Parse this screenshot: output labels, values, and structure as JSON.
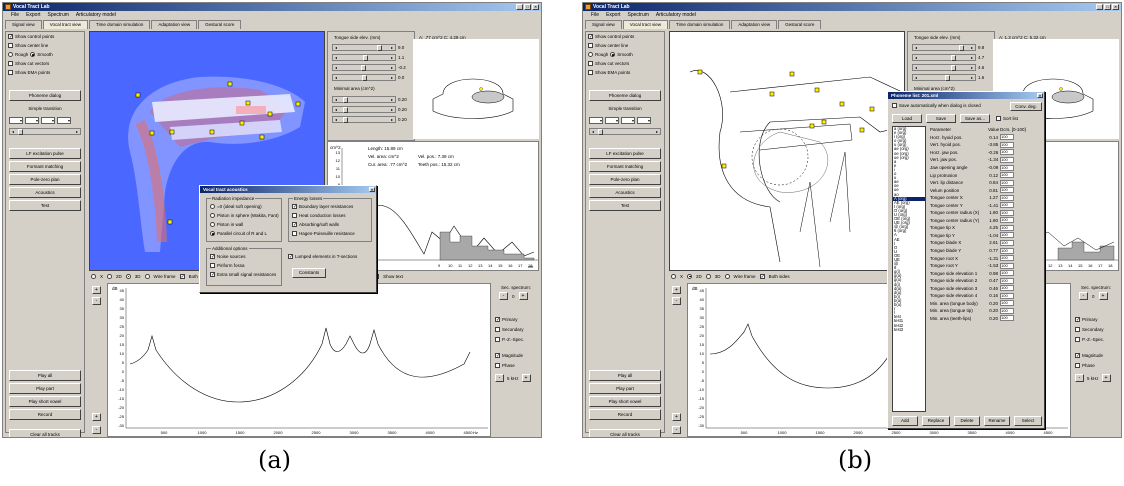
{
  "window_title": "Vocal Tract Lab",
  "menu": [
    "File",
    "Export",
    "Spectrum",
    "Articulatory model"
  ],
  "tabs": [
    "Signal view",
    "Vocal tract view",
    "Time domain simulation",
    "Adaptation view",
    "Gestural score"
  ],
  "sidebar": {
    "checks": [
      {
        "label": "Show control points",
        "checked": true
      },
      {
        "label": "Show center line",
        "checked": false
      },
      {
        "label": "Show cut vectors",
        "checked": false
      },
      {
        "label": "Show EMA points",
        "checked": false
      }
    ],
    "rough": "Rough",
    "smooth": "Smooth",
    "phoneme_dialog": "Phoneme dialog",
    "simple_transition": "Simple transition",
    "buttons": [
      "LF excitation pulse",
      "Formant matching",
      "Pole-zero plan",
      "Acoustics",
      "Test"
    ],
    "bottom_buttons": [
      "Play all",
      "Play part",
      "Play short vowel",
      "Record"
    ],
    "clear": "Clear all tracks"
  },
  "params": {
    "tongue_label": "Tongue side elev. (mm)",
    "min_area_label": "Minimal area (cm^2)"
  },
  "panel_a": {
    "tongue_values": [
      "9.0",
      "1.1",
      "-0.2",
      "0.0"
    ],
    "area_values": [
      "0.20",
      "0.20",
      "0.20"
    ],
    "readout": "A: .77 cm^2  C: 4.29 cm",
    "area": {
      "cm2": "cm^2",
      "y_ticks": [
        "13",
        "12",
        "11",
        "10",
        "9",
        "8",
        "7",
        "6",
        "5",
        "4",
        "3",
        "2",
        "1",
        "0"
      ],
      "length": "Length: 15.89 cm",
      "vel_area": "Vel. area: cm^2",
      "vel_pos": "Vel. pos.: 7.39 cm",
      "cur_area": "Cur. area: .77 cm^2",
      "teeth_pos": "Teeth pos.: 15.32 cm",
      "x_ticks": [
        "9",
        "10",
        "11",
        "12",
        "13",
        "14",
        "15",
        "16",
        "17",
        "18"
      ],
      "x_unit": "cm",
      "branches": "Branches",
      "show_text": "Show text",
      "circ": "Circ."
    },
    "view_opts": [
      "X",
      "2D",
      "3D",
      "Wire frame",
      "Both"
    ]
  },
  "acoustics_dialog": {
    "title": "Vocal tract acoustics",
    "radiation": {
      "title": "Radiation impedance",
      "options": [
        "=0 (ideal soft opening)",
        "Piston in sphere (Wakita, Fant)",
        "Piston in wall",
        "Parallel circuit of R and L"
      ],
      "selected": 3
    },
    "energy": {
      "title": "Energy losses",
      "options": [
        {
          "label": "Boundary layer resistances",
          "checked": true
        },
        {
          "label": "Heat conduction losses",
          "checked": false
        },
        {
          "label": "Absorbing/soft walls",
          "checked": true
        },
        {
          "label": "Hagen-Poiseuille resistance",
          "checked": false
        }
      ]
    },
    "additional": {
      "title": "Additional options",
      "options": [
        {
          "label": "Noise sources",
          "checked": true
        },
        {
          "label": "Piriform fossa",
          "checked": false
        },
        {
          "label": "Extra small signal resistances",
          "checked": true
        }
      ]
    },
    "lumped": "Lumped elements in T-sections",
    "constants": "Constants"
  },
  "spectrum": {
    "db": "dB",
    "y_ticks": [
      "45",
      "40",
      "35",
      "30",
      "25",
      "20",
      "15",
      "10",
      "5",
      "0",
      "-5",
      "-10",
      "-15",
      "-20",
      "-25",
      "-30"
    ],
    "x_ticks": [
      "500",
      "1000",
      "1500",
      "2000",
      "2500",
      "3000",
      "3500",
      "4000",
      "4500"
    ],
    "x_unit": "Hz",
    "sec_label": "Sec. spectrum:",
    "sec_value": "0",
    "primary": "Primary",
    "secondary": "Secondary",
    "pz": "P.-Z.-Spec.",
    "magnitude": "Magnitude",
    "phase": "Phase",
    "khz": "5 kHz"
  },
  "panel_b": {
    "tongue_values": [
      "9.8",
      "4.7",
      "4.6",
      "1.6"
    ],
    "area_values": [
      "0.20",
      "0.20",
      "0.20"
    ],
    "readout": "A: 1.3 cm^2  C: 5.32 cm",
    "view_opts": [
      "X",
      "2D",
      "3D",
      "Wire frame",
      "Both sides"
    ],
    "x_ticks": [
      "9",
      "10",
      "11",
      "12",
      "13",
      "14",
      "15",
      "16",
      "17",
      "18"
    ]
  },
  "phoneme_dialog": {
    "title": "Phoneme list: 201.xml",
    "save_auto": "Save automatically when dialog is closed",
    "conv": "Conv. deg.",
    "load": "Load",
    "save": "Save",
    "save_as": "Save as...",
    "sort": "Sort list",
    "list": [
      "a (org)",
      "e (org)",
      "i (org)",
      "o (org)",
      "u (org)",
      "ae (org)",
      "oe (org)",
      "ue (org)",
      "a",
      "e",
      "i",
      "o",
      "u",
      "ae",
      "oe",
      "ue",
      "ao",
      "A (org)",
      "AE (org)",
      "I (org)",
      "O (org)",
      "U (org)",
      "OE (org)",
      "UE (org)",
      "@ (org)",
      "6 (org)",
      "A",
      "AE",
      "I",
      "O",
      "U",
      "OE",
      "UE",
      "@",
      "6",
      "g(i)",
      "g(a)",
      "g(u)",
      "d(i)",
      "d(a)",
      "d(u)",
      "b(i)",
      "b(a)",
      "b(u)",
      "r",
      "l",
      "test",
      "test1",
      "test2",
      "test3"
    ],
    "selected_index": 17,
    "headers": [
      "Parameter",
      "Value",
      "Dcrs. [0-100]"
    ],
    "rows": [
      [
        "Horz. hyoid pos.",
        "0.14",
        "100"
      ],
      [
        "Vert. hyoid pos.",
        "-3.85",
        "100"
      ],
      [
        "Horz. jaw pos.",
        "-0.26",
        "100"
      ],
      [
        "Vert. jaw pos.",
        "-1.34",
        "100"
      ],
      [
        "Jaw opening angle",
        "-0.09",
        "100"
      ],
      [
        "Lip protrusion",
        "0.12",
        "100"
      ],
      [
        "Vert. lip distance",
        "0.84",
        "100"
      ],
      [
        "Velum position",
        "0.81",
        "100"
      ],
      [
        "Tongue center X",
        "1.27",
        "100"
      ],
      [
        "Tongue center Y",
        "-1.41",
        "100"
      ],
      [
        "Tongue center radius (X)",
        "1.80",
        "100"
      ],
      [
        "Tongue center radius (Y)",
        "1.80",
        "100"
      ],
      [
        "Tongue tip X",
        "4.25",
        "100"
      ],
      [
        "Tongue tip Y",
        "-1.04",
        "100"
      ],
      [
        "Tongue blade X",
        "2.61",
        "100"
      ],
      [
        "Tongue blade Y",
        "0.77",
        "100"
      ],
      [
        "Tongue root X",
        "-1.31",
        "100"
      ],
      [
        "Tongue root Y",
        "-1.53",
        "100"
      ],
      [
        "Tongue side elevation 1",
        "0.98",
        "100"
      ],
      [
        "Tongue side elevation 2",
        "0.47",
        "100"
      ],
      [
        "Tongue side elevation 3",
        "0.46",
        "100"
      ],
      [
        "Tongue side elevation 4",
        "0.16",
        "100"
      ],
      [
        "Min. area (tongue body)",
        "0.20",
        "100"
      ],
      [
        "Min. area (tongue tip)",
        "0.20",
        "100"
      ],
      [
        "Min. area (teeth-lips)",
        "0.20",
        "100"
      ]
    ],
    "bottom_buttons": [
      "Add",
      "Replace",
      "Delete",
      "Rename",
      "Select"
    ]
  },
  "captions": [
    "(a)",
    "(b)"
  ],
  "colors": {
    "title_blue": "#0a246a",
    "viewport_blue": "#4a68ff",
    "control_point": "#ffee00"
  }
}
